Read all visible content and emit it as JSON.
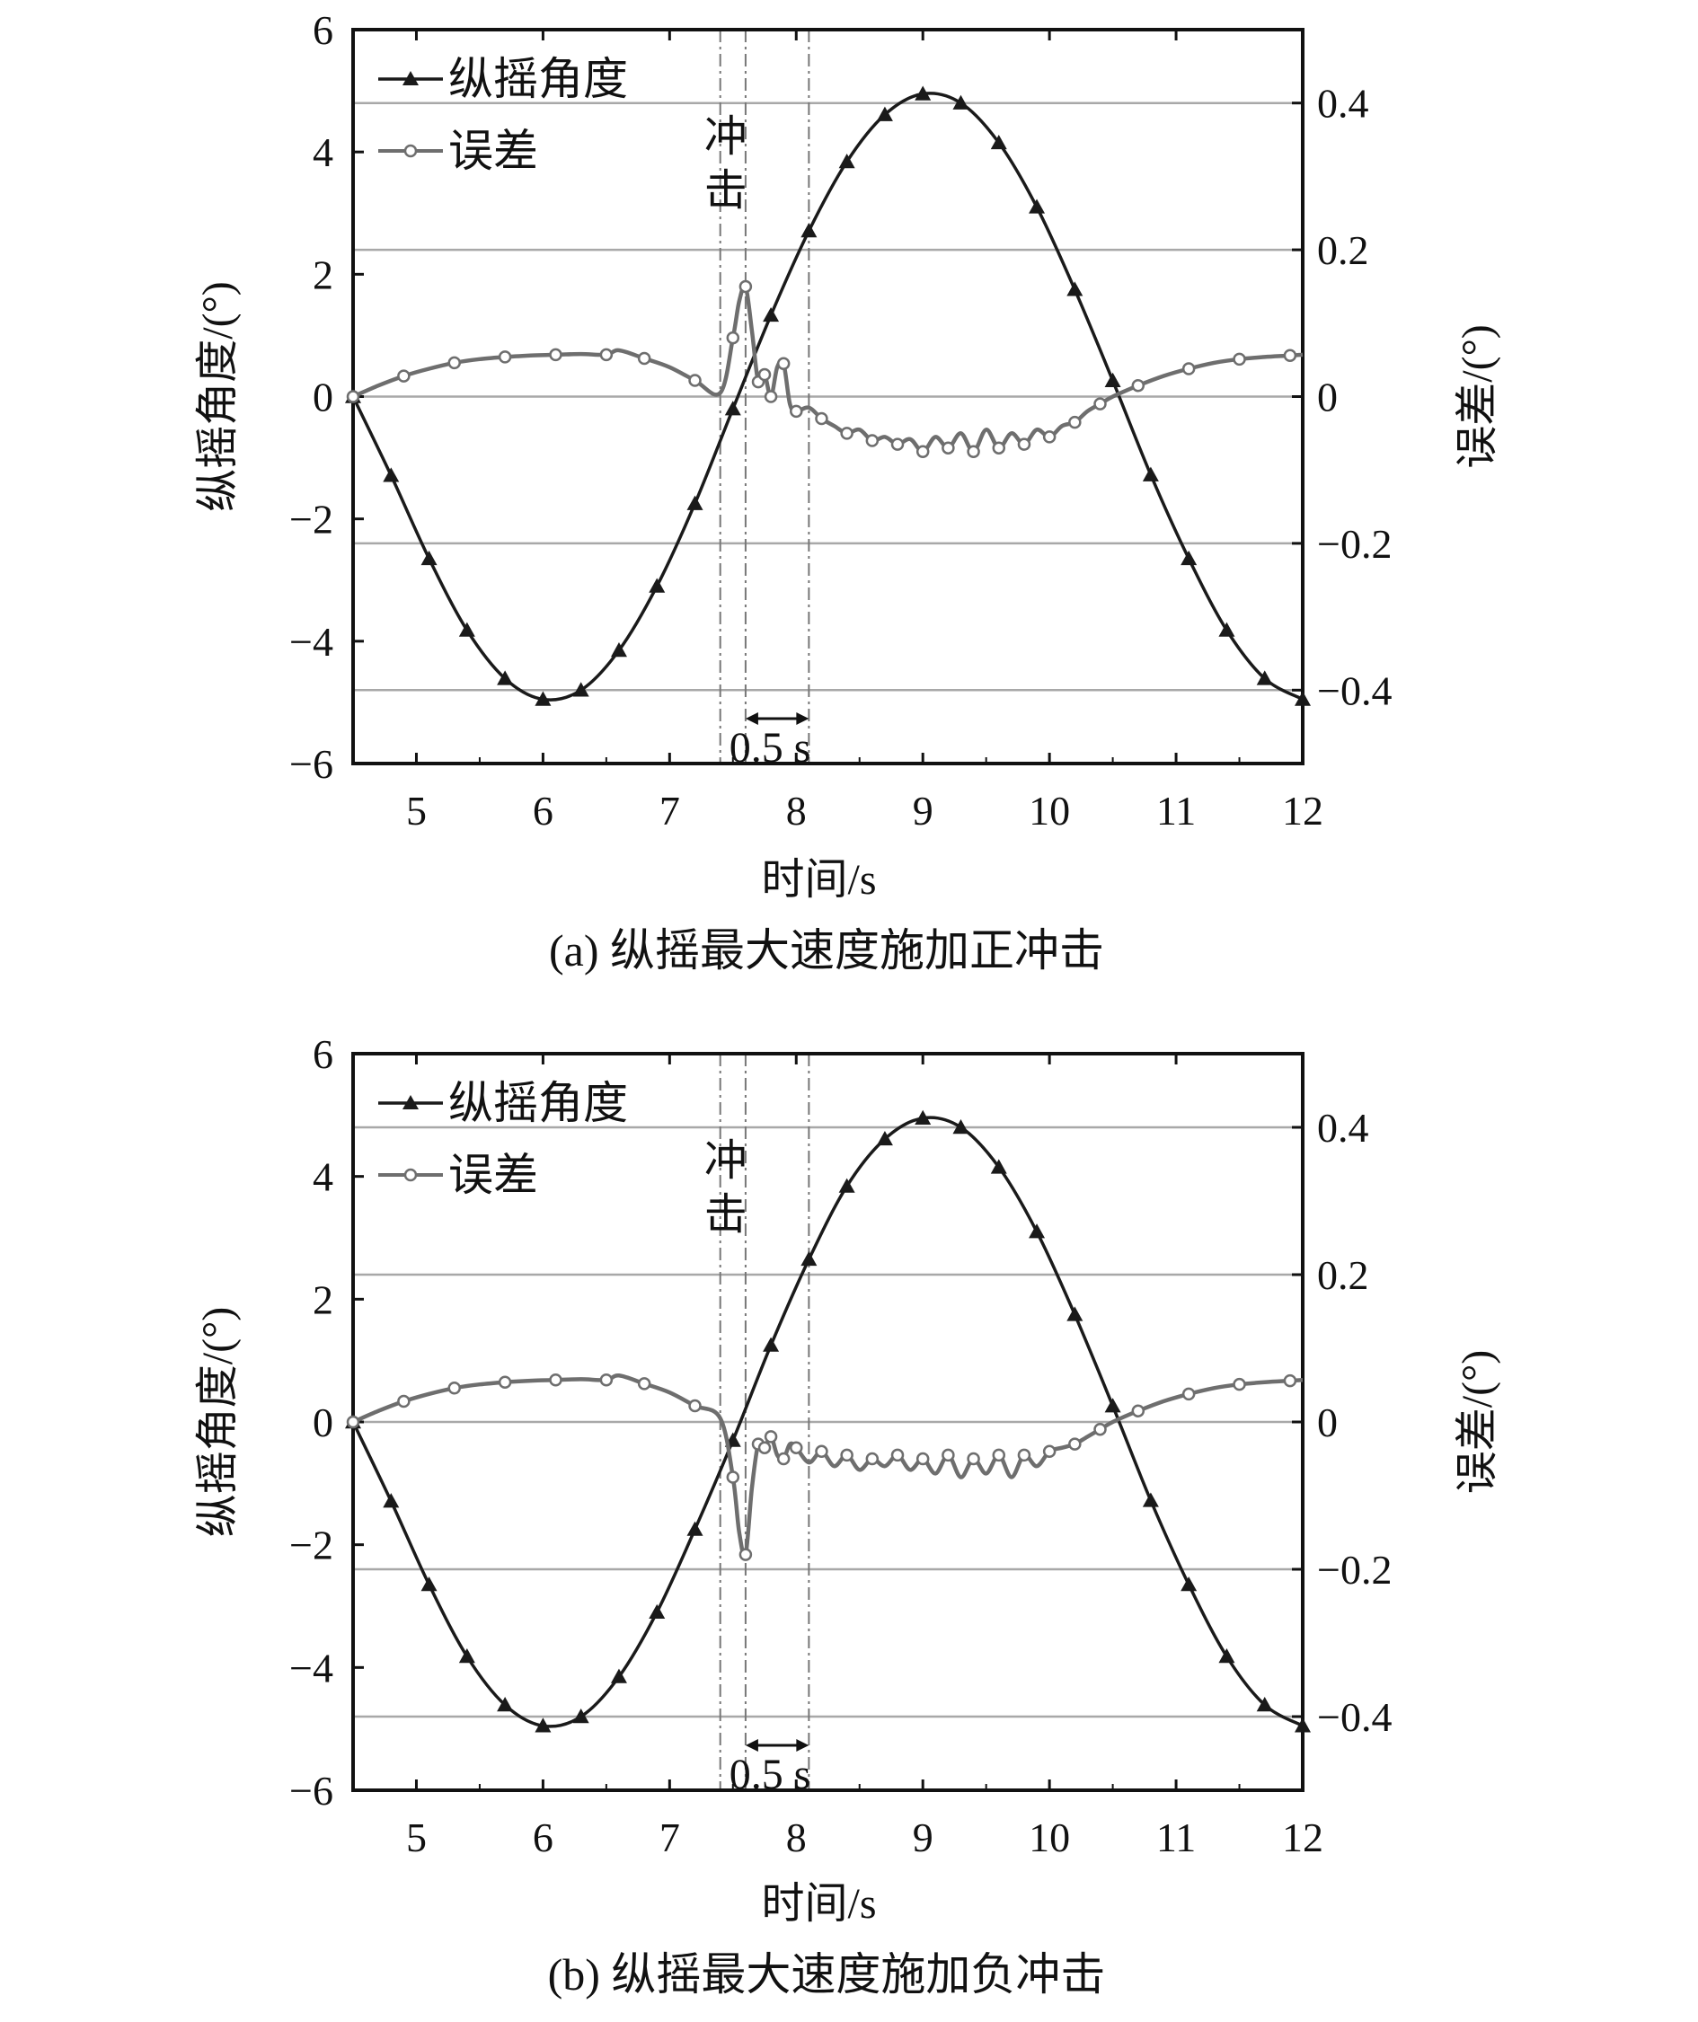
{
  "chart_data": [
    {
      "type": "line",
      "caption": "(a) 纵摇最大速度施加正冲击",
      "xlabel": "时间/s",
      "ylabel": "纵摇角度/(°)",
      "y2label": "误差/(°)",
      "xlim": [
        4.5,
        12
      ],
      "ylim": [
        -6,
        6
      ],
      "y2lim": [
        -0.5,
        0.5
      ],
      "xticks": [
        "5",
        "6",
        "7",
        "8",
        "9",
        "10",
        "11",
        "12"
      ],
      "yticks": [
        "6",
        "4",
        "2",
        "0",
        "−2",
        "−4",
        "−6"
      ],
      "y2ticks": [
        "0.4",
        "0.2",
        "0",
        "−0.2",
        "−0.4"
      ],
      "legend": [
        "纵摇角度",
        "误差"
      ],
      "annotations": {
        "shock_label": [
          "冲",
          "击"
        ],
        "interval_label": "0.5 s"
      },
      "shock_lines_x": [
        7.4,
        7.6,
        8.1
      ],
      "series": [
        {
          "name": "纵摇角度",
          "axis": "left",
          "x": [
            4.5,
            4.8,
            5.1,
            5.4,
            5.7,
            6.0,
            6.3,
            6.6,
            6.9,
            7.2,
            7.5,
            7.8,
            8.1,
            8.4,
            8.7,
            9.0,
            9.3,
            9.6,
            9.9,
            10.2,
            10.5,
            10.8,
            11.1,
            11.4,
            11.7,
            12.0
          ],
          "values": [
            0.0,
            -1.29,
            -2.65,
            -3.82,
            -4.61,
            -4.95,
            -4.8,
            -4.15,
            -3.1,
            -1.75,
            -0.2,
            1.33,
            2.71,
            3.84,
            4.61,
            4.95,
            4.8,
            4.15,
            3.1,
            1.75,
            0.26,
            -1.28,
            -2.65,
            -3.82,
            -4.61,
            -4.95
          ]
        },
        {
          "name": "误差",
          "axis": "right",
          "x": [
            4.5,
            4.7,
            4.9,
            5.1,
            5.3,
            5.5,
            5.7,
            5.9,
            6.1,
            6.3,
            6.5,
            6.6,
            6.8,
            7.0,
            7.2,
            7.4,
            7.5,
            7.55,
            7.6,
            7.65,
            7.7,
            7.75,
            7.8,
            7.85,
            7.9,
            7.95,
            8.0,
            8.1,
            8.2,
            8.3,
            8.4,
            8.5,
            8.6,
            8.7,
            8.8,
            8.9,
            9.0,
            9.1,
            9.2,
            9.3,
            9.4,
            9.5,
            9.6,
            9.7,
            9.8,
            9.9,
            10.0,
            10.1,
            10.2,
            10.3,
            10.4,
            10.5,
            10.7,
            10.9,
            11.1,
            11.3,
            11.5,
            11.7,
            11.9,
            12.0
          ],
          "values": [
            0.0,
            0.015,
            0.028,
            0.038,
            0.046,
            0.051,
            0.054,
            0.056,
            0.057,
            0.058,
            0.057,
            0.063,
            0.052,
            0.04,
            0.022,
            0.005,
            0.08,
            0.13,
            0.15,
            0.09,
            0.02,
            0.03,
            0.0,
            0.04,
            0.045,
            -0.01,
            -0.02,
            -0.015,
            -0.03,
            -0.04,
            -0.05,
            -0.045,
            -0.06,
            -0.055,
            -0.065,
            -0.058,
            -0.075,
            -0.055,
            -0.07,
            -0.05,
            -0.075,
            -0.045,
            -0.07,
            -0.05,
            -0.065,
            -0.045,
            -0.055,
            -0.04,
            -0.035,
            -0.02,
            -0.01,
            0.0,
            0.015,
            0.028,
            0.038,
            0.046,
            0.051,
            0.054,
            0.056,
            0.057
          ]
        }
      ]
    },
    {
      "type": "line",
      "caption": "(b) 纵摇最大速度施加负冲击",
      "xlabel": "时间/s",
      "ylabel": "纵摇角度/(°)",
      "y2label": "误差/(°)",
      "xlim": [
        4.5,
        12
      ],
      "ylim": [
        -6,
        6
      ],
      "y2lim": [
        -0.5,
        0.5
      ],
      "xticks": [
        "5",
        "6",
        "7",
        "8",
        "9",
        "10",
        "11",
        "12"
      ],
      "yticks": [
        "6",
        "4",
        "2",
        "0",
        "−2",
        "−4",
        "−6"
      ],
      "y2ticks": [
        "0.4",
        "0.2",
        "0",
        "−0.2",
        "−0.4"
      ],
      "legend": [
        "纵摇角度",
        "误差"
      ],
      "annotations": {
        "shock_label": [
          "冲",
          "击"
        ],
        "interval_label": "0.5 s"
      },
      "shock_lines_x": [
        7.4,
        7.6,
        8.1
      ],
      "series": [
        {
          "name": "纵摇角度",
          "axis": "left",
          "x": [
            4.5,
            4.8,
            5.1,
            5.4,
            5.7,
            6.0,
            6.3,
            6.6,
            6.9,
            7.2,
            7.5,
            7.8,
            8.1,
            8.4,
            8.7,
            9.0,
            9.3,
            9.6,
            9.9,
            10.2,
            10.5,
            10.8,
            11.1,
            11.4,
            11.7,
            12.0
          ],
          "values": [
            0.0,
            -1.29,
            -2.65,
            -3.82,
            -4.61,
            -4.95,
            -4.8,
            -4.15,
            -3.1,
            -1.75,
            -0.3,
            1.25,
            2.65,
            3.84,
            4.61,
            4.95,
            4.8,
            4.15,
            3.1,
            1.75,
            0.26,
            -1.28,
            -2.65,
            -3.82,
            -4.61,
            -4.95
          ]
        },
        {
          "name": "误差",
          "axis": "right",
          "x": [
            4.5,
            4.7,
            4.9,
            5.1,
            5.3,
            5.5,
            5.7,
            5.9,
            6.1,
            6.3,
            6.5,
            6.6,
            6.8,
            7.0,
            7.2,
            7.4,
            7.5,
            7.55,
            7.6,
            7.65,
            7.7,
            7.75,
            7.8,
            7.85,
            7.9,
            7.95,
            8.0,
            8.1,
            8.2,
            8.3,
            8.4,
            8.5,
            8.6,
            8.7,
            8.8,
            8.9,
            9.0,
            9.1,
            9.2,
            9.3,
            9.4,
            9.5,
            9.6,
            9.7,
            9.8,
            9.9,
            10.0,
            10.1,
            10.2,
            10.3,
            10.4,
            10.5,
            10.7,
            10.9,
            11.1,
            11.3,
            11.5,
            11.7,
            11.9,
            12.0
          ],
          "values": [
            0.0,
            0.015,
            0.028,
            0.038,
            0.046,
            0.051,
            0.054,
            0.056,
            0.057,
            0.058,
            0.057,
            0.063,
            0.052,
            0.04,
            0.022,
            0.005,
            -0.075,
            -0.15,
            -0.18,
            -0.09,
            -0.03,
            -0.035,
            -0.02,
            -0.045,
            -0.05,
            -0.03,
            -0.035,
            -0.055,
            -0.04,
            -0.06,
            -0.045,
            -0.065,
            -0.05,
            -0.06,
            -0.045,
            -0.065,
            -0.05,
            -0.07,
            -0.045,
            -0.075,
            -0.05,
            -0.07,
            -0.045,
            -0.075,
            -0.045,
            -0.06,
            -0.04,
            -0.035,
            -0.03,
            -0.02,
            -0.01,
            0.0,
            0.015,
            0.028,
            0.038,
            0.046,
            0.051,
            0.054,
            0.056,
            0.057
          ]
        }
      ]
    }
  ],
  "colors": {
    "angle": "#1a1a1a",
    "error": "#6e6e6e",
    "grid": "#a8a8a8",
    "frame": "#111111"
  },
  "icons": {
    "angle_marker": "filled-triangle-marker",
    "error_marker": "open-circle-marker"
  }
}
